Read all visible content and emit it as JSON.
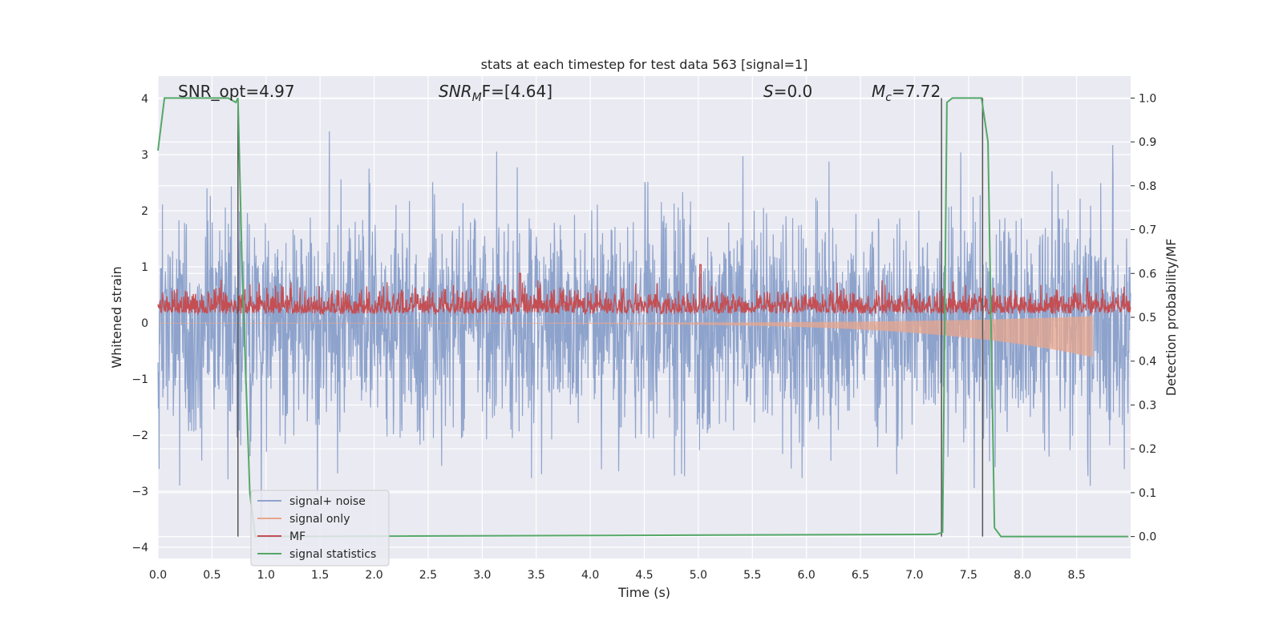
{
  "chart_data": {
    "type": "line",
    "title": "stats at each timestep for test data 563 [signal=1]",
    "xlabel": "Time (s)",
    "ylabel": "Whitened strain",
    "y2label": "Detection probability/MF",
    "xlim": [
      0.0,
      9.0
    ],
    "ylim": [
      -4.2,
      4.4
    ],
    "y2lim": [
      -0.05,
      1.05
    ],
    "xticks": [
      "0.0",
      "0.5",
      "1.0",
      "1.5",
      "2.0",
      "2.5",
      "3.0",
      "3.5",
      "4.0",
      "4.5",
      "5.0",
      "5.5",
      "6.0",
      "6.5",
      "7.0",
      "7.5",
      "8.0",
      "8.5"
    ],
    "yticks": [
      "4",
      "3",
      "2",
      "1",
      "0",
      "−1",
      "−2",
      "−3",
      "−4"
    ],
    "y2ticks": [
      "1.0",
      "0.9",
      "0.8",
      "0.7",
      "0.6",
      "0.5",
      "0.4",
      "0.3",
      "0.2",
      "0.1",
      "0.0"
    ],
    "grid": true,
    "legend_position": "bottom-left",
    "annotations": {
      "snr_opt": "SNR_opt=4.97",
      "snr_mf_base": "SNR",
      "snr_mf_sub": "M",
      "snr_mf_rest": "F=[4.64]",
      "s_sym": "S",
      "s_val": "=0.0",
      "mc_sym": "M",
      "mc_sub": "c",
      "mc_val": "=7.72"
    },
    "vlines": [
      0.74,
      7.25,
      7.63
    ],
    "series": [
      {
        "name": "signal+ noise",
        "color": "#8ea3cc",
        "noise_std": 1.0,
        "duration": 9.0
      },
      {
        "name": "signal only",
        "color": "#e8a58c",
        "chirp_end": 8.65,
        "peak_amplitude": 0.6
      },
      {
        "name": "MF",
        "color": "#c44e52",
        "mean": 0.52,
        "peaks": [
          [
            3.35,
            0.6
          ],
          [
            5.02,
            0.62
          ]
        ]
      },
      {
        "name": "signal statistics",
        "color": "#55a868",
        "x": [
          0.0,
          0.06,
          0.1,
          0.4,
          0.65,
          0.72,
          0.74,
          0.78,
          0.85,
          0.9,
          7.2,
          7.26,
          7.3,
          7.35,
          7.4,
          7.62,
          7.68,
          7.74,
          7.8,
          8.98
        ],
        "y": [
          0.88,
          1.0,
          1.0,
          1.0,
          1.0,
          0.99,
          1.0,
          0.6,
          0.1,
          0.0,
          0.005,
          0.01,
          0.99,
          1.0,
          1.0,
          1.0,
          0.9,
          0.02,
          0.0,
          0.0
        ]
      }
    ]
  }
}
